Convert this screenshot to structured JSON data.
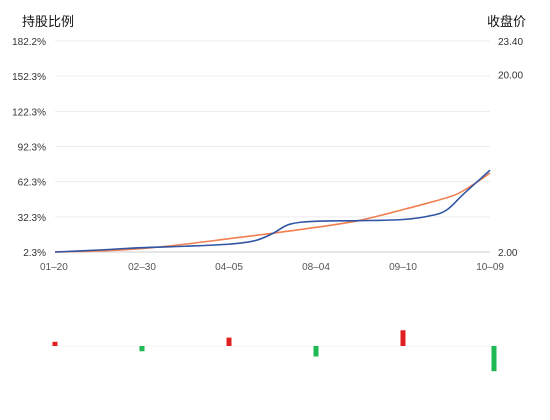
{
  "chart_data": {
    "type": "line",
    "left_axis_title": "持股比例",
    "right_axis_title": "收盘价",
    "left_ticks": [
      "182.2%",
      "152.3%",
      "122.3%",
      "92.3%",
      "62.3%",
      "32.3%",
      "2.3%"
    ],
    "right_ticks": [
      "23.40",
      "20.00",
      "2.00"
    ],
    "x_ticks": [
      "01–20",
      "02–30",
      "04–05",
      "08–04",
      "09–10",
      "10–09"
    ],
    "ylim_left": [
      2.3,
      182.2
    ],
    "ylim_right": [
      2.0,
      23.4
    ],
    "grid": true,
    "series": [
      {
        "axis": "left",
        "color": "#2f55a4",
        "points": [
          [
            0,
            2.3
          ],
          [
            0.5,
            4.0
          ],
          [
            1.0,
            6.0
          ],
          [
            1.5,
            7.2
          ],
          [
            2.0,
            9.0
          ],
          [
            2.3,
            12.0
          ],
          [
            2.5,
            18.0
          ],
          [
            2.7,
            26.0
          ],
          [
            3.0,
            28.5
          ],
          [
            3.5,
            29.0
          ],
          [
            4.0,
            30.0
          ],
          [
            4.3,
            33.0
          ],
          [
            4.5,
            38.0
          ],
          [
            4.7,
            52.0
          ],
          [
            5.0,
            72.0
          ]
        ]
      },
      {
        "axis": "right",
        "color": "#f08050",
        "points": [
          [
            0,
            2.0
          ],
          [
            0.5,
            2.1
          ],
          [
            1.0,
            2.35
          ],
          [
            1.5,
            2.8
          ],
          [
            2.0,
            3.35
          ],
          [
            2.5,
            3.9
          ],
          [
            3.0,
            4.5
          ],
          [
            3.5,
            5.2
          ],
          [
            4.0,
            6.3
          ],
          [
            4.3,
            7.0
          ],
          [
            4.6,
            7.8
          ],
          [
            4.8,
            8.8
          ],
          [
            5.0,
            10.0
          ]
        ]
      }
    ],
    "bar_series": {
      "type": "bar",
      "positive_color": "#e02020",
      "negative_color": "#1db954",
      "points": [
        [
          0,
          4
        ],
        [
          1.0,
          -5
        ],
        [
          2.0,
          8
        ],
        [
          3.0,
          -10
        ],
        [
          4.0,
          15
        ],
        [
          5.0,
          -24
        ]
      ]
    }
  }
}
